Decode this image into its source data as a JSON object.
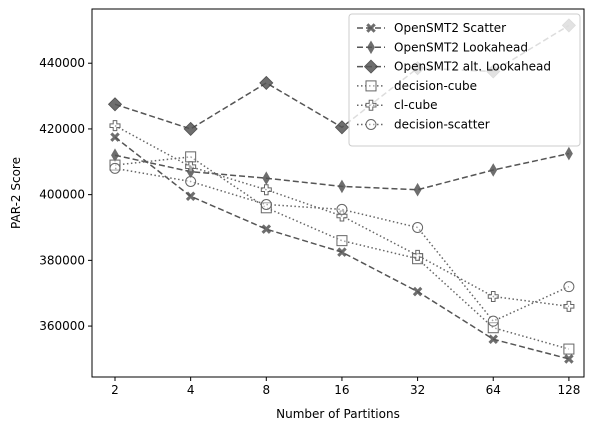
{
  "chart_data": {
    "type": "line",
    "xlabel": "Number of Partitions",
    "ylabel": "PAR-2 Score",
    "x": [
      2,
      4,
      8,
      16,
      32,
      64,
      128
    ],
    "x_scale": "log2",
    "xlim": [
      1.62,
      147
    ],
    "ylim": [
      344500,
      456500
    ],
    "xticks": [
      2,
      4,
      8,
      16,
      32,
      64,
      128
    ],
    "yticks": [
      360000,
      380000,
      400000,
      420000,
      440000
    ],
    "grid": false,
    "legend_position": "top-right",
    "series": [
      {
        "name": "OpenSMT2 Scatter",
        "values": [
          417500,
          399500,
          389500,
          382500,
          370500,
          356000,
          350000
        ],
        "linestyle": "dashed",
        "marker": "x-filled",
        "color": "#555555"
      },
      {
        "name": "OpenSMT2 Lookahead",
        "values": [
          412000,
          407000,
          405000,
          402500,
          401500,
          407500,
          412500
        ],
        "linestyle": "dashed",
        "marker": "thin-diamond",
        "color": "#555555"
      },
      {
        "name": "OpenSMT2 alt. Lookahead",
        "values": [
          427500,
          420000,
          434000,
          420500,
          438500,
          437500,
          451500
        ],
        "linestyle": "dashed",
        "marker": "diamond",
        "color": "#555555"
      },
      {
        "name": "decision-cube",
        "values": [
          409000,
          411500,
          396000,
          386000,
          380500,
          359500,
          353000
        ],
        "linestyle": "dotted",
        "marker": "square",
        "color": "#666666"
      },
      {
        "name": "cl-cube",
        "values": [
          421000,
          408500,
          401500,
          393500,
          381500,
          369000,
          366000
        ],
        "linestyle": "dotted",
        "marker": "plus",
        "color": "#666666"
      },
      {
        "name": "decision-scatter",
        "values": [
          408000,
          404000,
          397000,
          395500,
          390000,
          361500,
          372000
        ],
        "linestyle": "dotted",
        "marker": "circle",
        "color": "#666666"
      }
    ]
  }
}
